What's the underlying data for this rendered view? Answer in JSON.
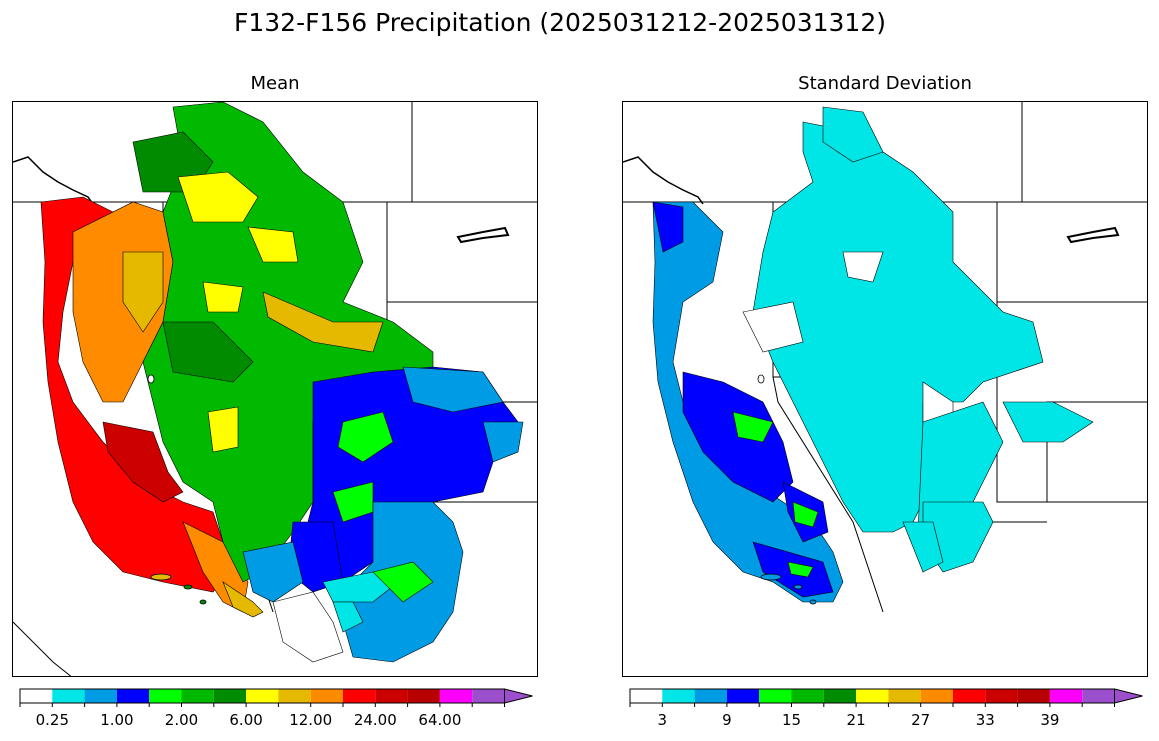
{
  "figure": {
    "title": "F132-F156 Precipitation (2025031212-2025031312)"
  },
  "panels": [
    {
      "title": "Mean",
      "colorbar": {
        "colors": [
          "#ffffff",
          "#00e5e5",
          "#009be5",
          "#0000ff",
          "#00ff00",
          "#00b900",
          "#008b00",
          "#ffff00",
          "#e5b900",
          "#ff8b00",
          "#ff0000",
          "#cd0000",
          "#b90000",
          "#ff00ff",
          "#9b4fcd"
        ],
        "tick_labels": [
          "0.25",
          "1.00",
          "2.00",
          "6.00",
          "12.00",
          "24.00",
          "64.00"
        ],
        "extend": "max"
      }
    },
    {
      "title": "Standard Deviation",
      "colorbar": {
        "colors": [
          "#ffffff",
          "#00e5e5",
          "#009be5",
          "#0000ff",
          "#00ff00",
          "#00b900",
          "#008b00",
          "#ffff00",
          "#e5b900",
          "#ff8b00",
          "#ff0000",
          "#cd0000",
          "#b90000",
          "#ff00ff",
          "#9b4fcd"
        ],
        "tick_labels": [
          "3",
          "9",
          "15",
          "21",
          "27",
          "33",
          "39"
        ],
        "extend": "max"
      }
    }
  ],
  "legend_map": {
    "region": "Western United States river basins",
    "mean_field": "high precipitation along Pacific coast (red), decreasing inland (green), moderate in interior southwest (blue)",
    "stddev_field": "highest spread along California coast and Sierra (blue), cyan across interior west, white in southwest"
  }
}
